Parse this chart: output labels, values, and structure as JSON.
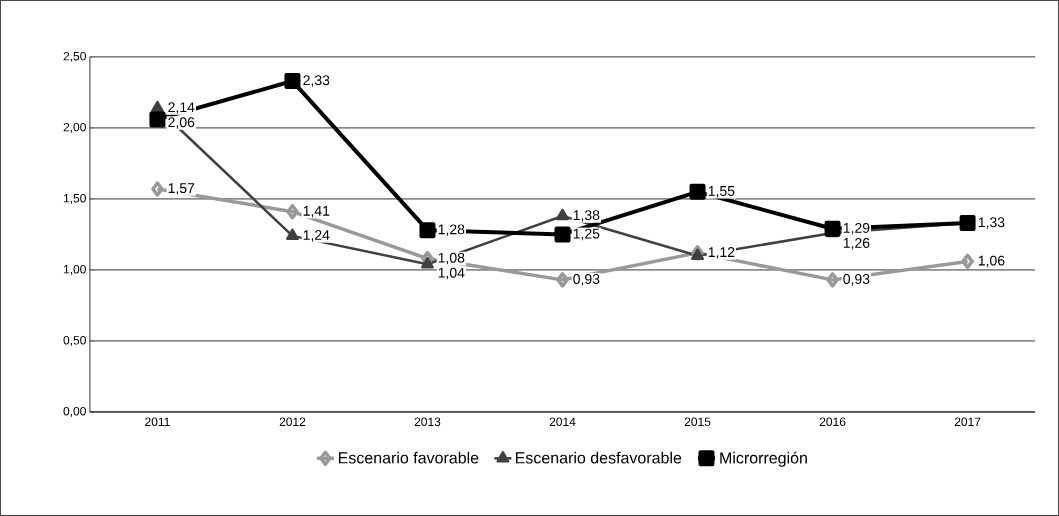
{
  "chart_data": {
    "type": "line",
    "categories": [
      "2011",
      "2012",
      "2013",
      "2014",
      "2015",
      "2016",
      "2017"
    ],
    "series": [
      {
        "name": "Escenario favorable",
        "color": "#999999",
        "marker": "diamond",
        "values": [
          1.57,
          1.41,
          1.08,
          0.93,
          1.12,
          0.93,
          1.06
        ],
        "value_labels": [
          "1,57",
          "1,41",
          "1,08",
          "0,93",
          "1,12",
          "0,93",
          "1,06"
        ]
      },
      {
        "name": "Escenario desfavorable",
        "color": "#404040",
        "marker": "triangle",
        "values": [
          2.14,
          1.24,
          1.04,
          1.38,
          1.1,
          1.26,
          1.33
        ],
        "value_labels": [
          "2,14",
          "1,24",
          "1,04",
          "1,38",
          null,
          "1,26",
          null
        ]
      },
      {
        "name": "Microrregión",
        "color": "#000000",
        "marker": "square",
        "values": [
          2.06,
          2.33,
          1.28,
          1.25,
          1.55,
          1.29,
          1.33
        ],
        "value_labels": [
          "2,06",
          "2,33",
          "1,28",
          "1,25",
          "1,55",
          "1,29",
          "1,33"
        ]
      }
    ],
    "ylim": [
      0,
      2.5
    ],
    "yticks": [
      {
        "value": 0,
        "label": "0,00"
      },
      {
        "value": 0.5,
        "label": "0,50"
      },
      {
        "value": 1,
        "label": "1,00"
      },
      {
        "value": 1.5,
        "label": "1,50"
      },
      {
        "value": 2,
        "label": "2,00"
      },
      {
        "value": 2.5,
        "label": "2,50"
      }
    ],
    "grid": "y",
    "legend": "bottom",
    "line_style": "solid"
  }
}
